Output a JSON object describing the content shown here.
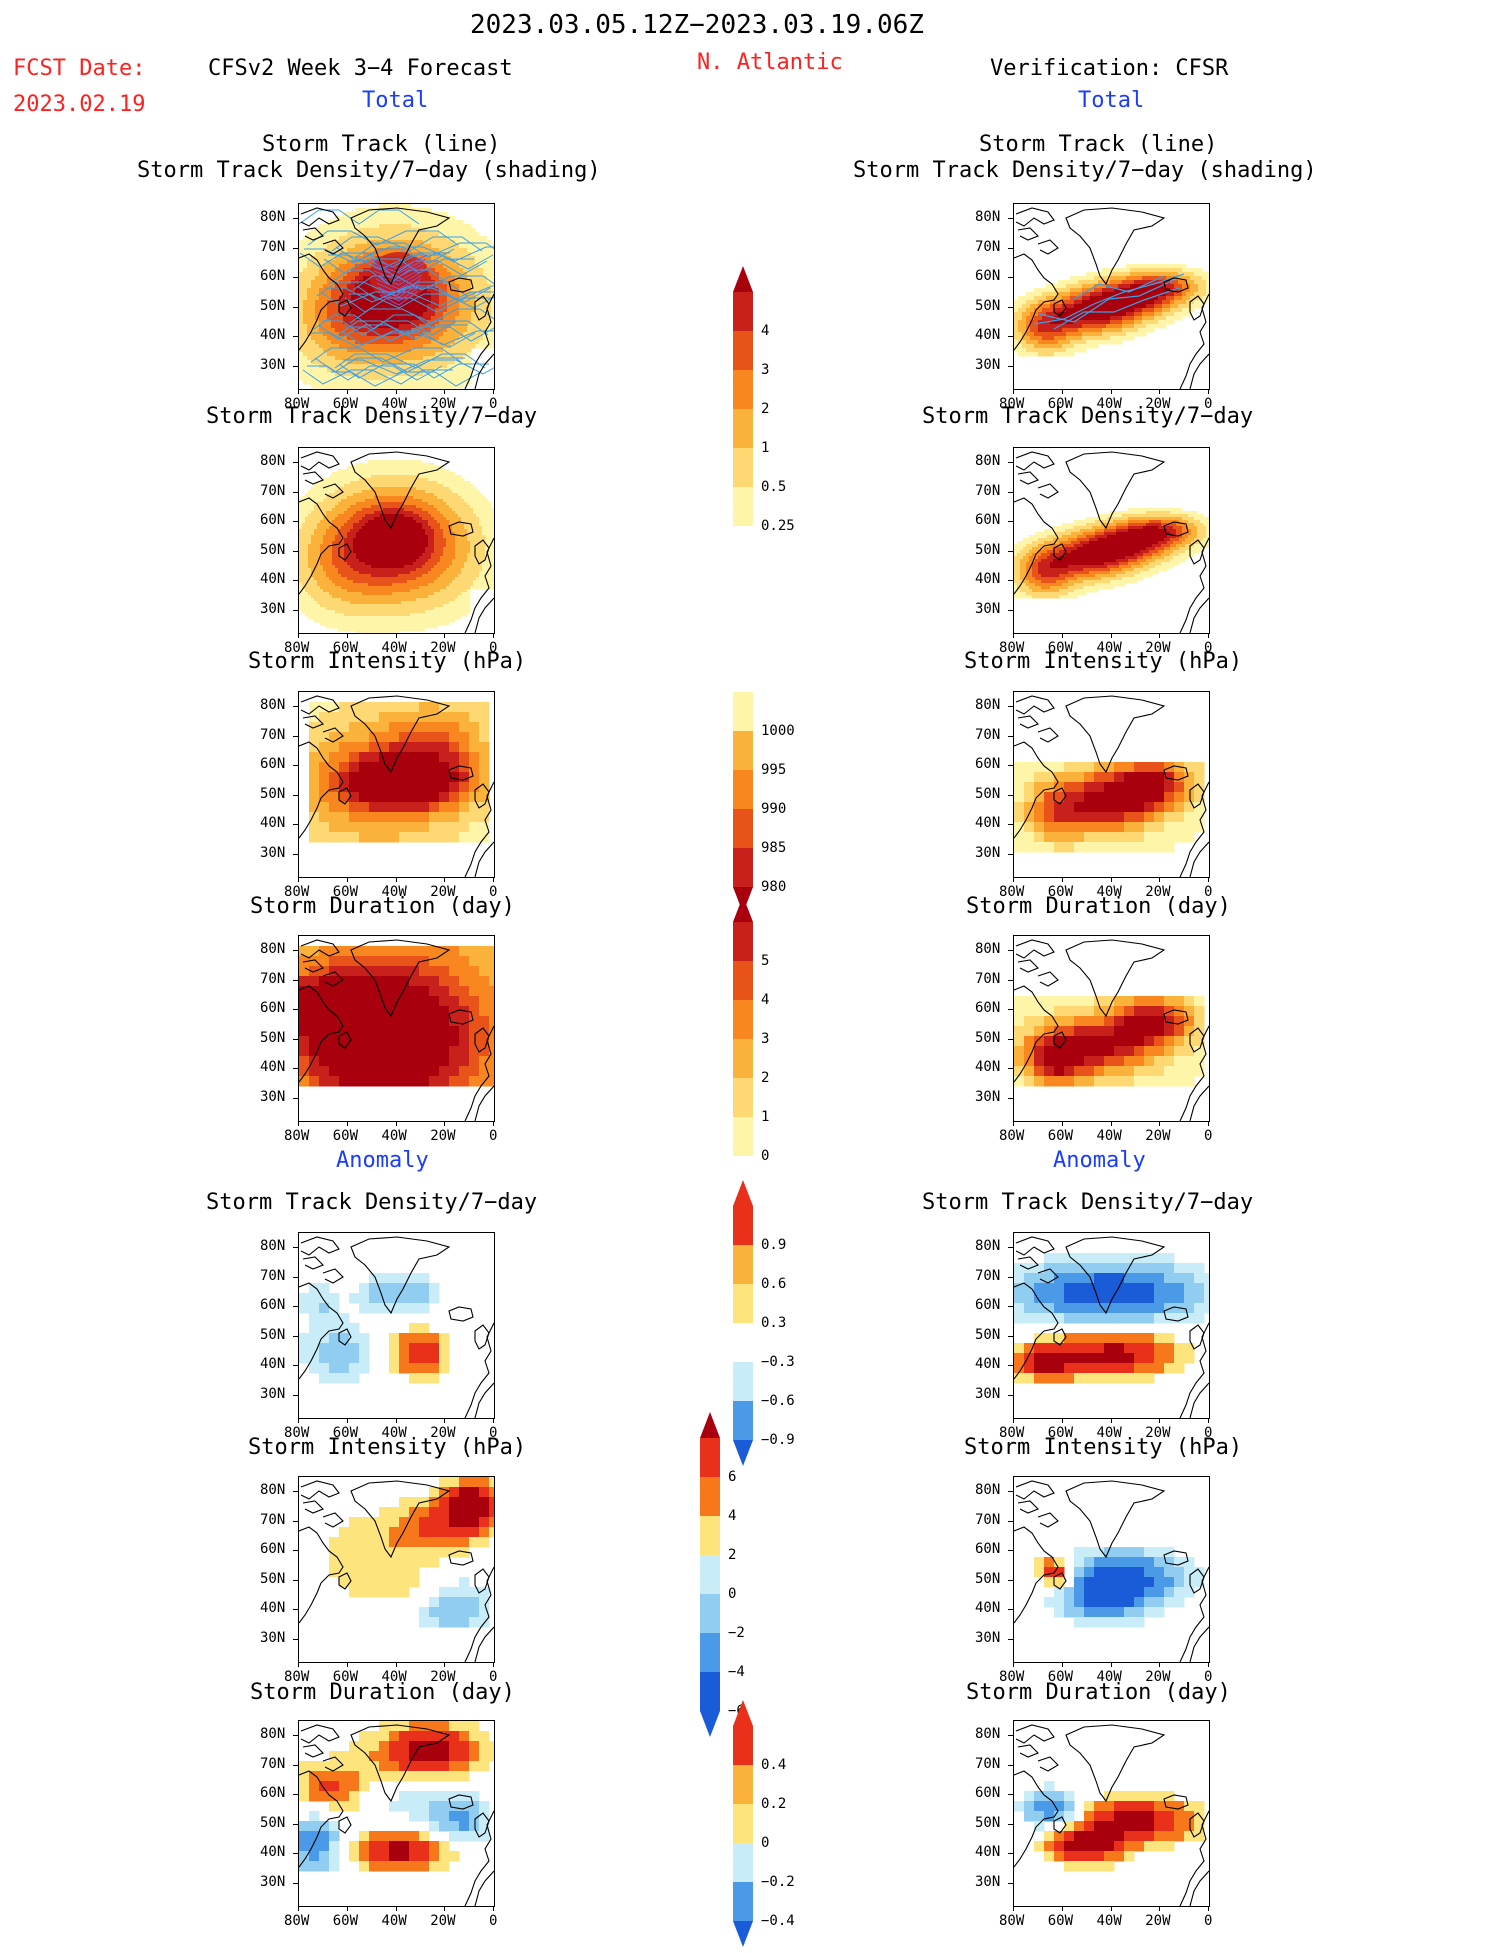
{
  "header": {
    "date_range": "2023.03.05.12Z−2023.03.19.06Z",
    "fcst_label": "FCST Date:",
    "fcst_date": "2023.02.19",
    "forecast_title": "CFSv2 Week 3−4 Forecast",
    "region": "N. Atlantic",
    "verification": "Verification: CFSR"
  },
  "sections": {
    "total": "Total",
    "anomaly": "Anomaly"
  },
  "axes": {
    "lat_ticks": [
      "80N",
      "70N",
      "60N",
      "50N",
      "40N",
      "30N"
    ],
    "lon_ticks": [
      "80W",
      "60W",
      "40W",
      "20W",
      "0"
    ]
  },
  "panel_titles": {
    "storm_track_line": "Storm Track (line)",
    "storm_track_shading": "Storm Track Density/7−day (shading)",
    "density": "Storm Track Density/7−day",
    "intensity": "Storm Intensity (hPa)",
    "duration": "Storm Duration (day)"
  },
  "colors": {
    "red_text": "#ff2020",
    "blue_text": "#1a3cff",
    "warm_scale": [
      "#fff5a8",
      "#fdd873",
      "#fbb23a",
      "#f7871e",
      "#e8531a",
      "#c8201a",
      "#a8000c"
    ],
    "anom_pos": [
      "#fde47c",
      "#fbb23a",
      "#f7781a",
      "#e8301a",
      "#a8000c"
    ],
    "anom_neg": [
      "#c8ecf8",
      "#90cdf0",
      "#4a9ae8",
      "#1a5cd8"
    ],
    "track_line": "#3aa0e8"
  },
  "colorbars": {
    "density_total": [
      "4",
      "3",
      "2",
      "1",
      "0.5",
      "0.25"
    ],
    "intensity_total": [
      "1000",
      "995",
      "990",
      "985",
      "980"
    ],
    "duration_total": [
      "5",
      "4",
      "3",
      "2",
      "1",
      "0"
    ],
    "density_anom": [
      "0.9",
      "0.6",
      "0.3",
      "−0.3",
      "−0.6",
      "−0.9"
    ],
    "intensity_anom": [
      "6",
      "4",
      "2",
      "0",
      "−2",
      "−4",
      "−6"
    ],
    "duration_anom": [
      "0.4",
      "0.2",
      "0",
      "−0.2",
      "−0.4"
    ]
  }
}
